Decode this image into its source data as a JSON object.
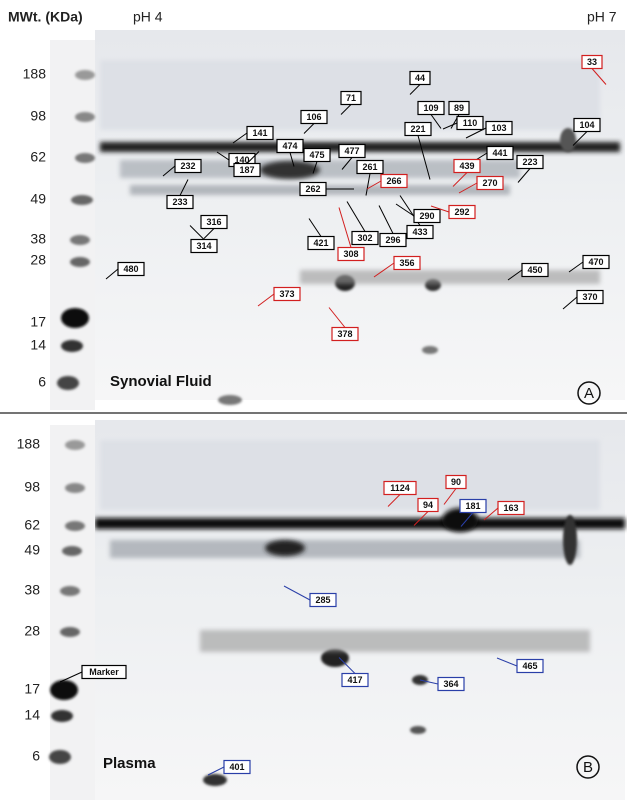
{
  "panels": [
    {
      "header": {
        "mw_label": "MWt. (KDa)",
        "ph_low": "pH 4",
        "ph_high": "pH 7"
      },
      "mw_markers": [
        "188",
        "98",
        "62",
        "49",
        "38",
        "28",
        "17",
        "14",
        "6"
      ],
      "sample": "Synovial Fluid",
      "letter": "A",
      "spots": [
        {
          "label": "44",
          "color": "#000000"
        },
        {
          "label": "71",
          "color": "#000000"
        },
        {
          "label": "106",
          "color": "#000000"
        },
        {
          "label": "141",
          "color": "#000000"
        },
        {
          "label": "140",
          "color": "#000000"
        },
        {
          "label": "187",
          "color": "#000000"
        },
        {
          "label": "474",
          "color": "#000000"
        },
        {
          "label": "475",
          "color": "#000000"
        },
        {
          "label": "477",
          "color": "#000000"
        },
        {
          "label": "261",
          "color": "#000000"
        },
        {
          "label": "262",
          "color": "#000000"
        },
        {
          "label": "109",
          "color": "#000000"
        },
        {
          "label": "89",
          "color": "#000000"
        },
        {
          "label": "110",
          "color": "#000000"
        },
        {
          "label": "103",
          "color": "#000000"
        },
        {
          "label": "221",
          "color": "#000000"
        },
        {
          "label": "441",
          "color": "#000000"
        },
        {
          "label": "223",
          "color": "#000000"
        },
        {
          "label": "104",
          "color": "#000000"
        },
        {
          "label": "232",
          "color": "#000000"
        },
        {
          "label": "233",
          "color": "#000000"
        },
        {
          "label": "316",
          "color": "#000000"
        },
        {
          "label": "314",
          "color": "#000000"
        },
        {
          "label": "421",
          "color": "#000000"
        },
        {
          "label": "302",
          "color": "#000000"
        },
        {
          "label": "296",
          "color": "#000000"
        },
        {
          "label": "433",
          "color": "#000000"
        },
        {
          "label": "290",
          "color": "#000000"
        },
        {
          "label": "480",
          "color": "#000000"
        },
        {
          "label": "450",
          "color": "#000000"
        },
        {
          "label": "470",
          "color": "#000000"
        },
        {
          "label": "370",
          "color": "#000000"
        },
        {
          "label": "33",
          "color": "#d21f1f"
        },
        {
          "label": "266",
          "color": "#d21f1f"
        },
        {
          "label": "439",
          "color": "#d21f1f"
        },
        {
          "label": "270",
          "color": "#d21f1f"
        },
        {
          "label": "292",
          "color": "#d21f1f"
        },
        {
          "label": "308",
          "color": "#d21f1f"
        },
        {
          "label": "356",
          "color": "#d21f1f"
        },
        {
          "label": "373",
          "color": "#d21f1f"
        },
        {
          "label": "378",
          "color": "#d21f1f"
        }
      ]
    },
    {
      "mw_markers": [
        "188",
        "98",
        "62",
        "49",
        "38",
        "28",
        "17",
        "14",
        "6"
      ],
      "sample": "Plasma",
      "letter": "B",
      "spots": [
        {
          "label": "1124",
          "color": "#d21f1f"
        },
        {
          "label": "90",
          "color": "#d21f1f"
        },
        {
          "label": "94",
          "color": "#d21f1f"
        },
        {
          "label": "163",
          "color": "#d21f1f"
        },
        {
          "label": "181",
          "color": "#2a3fa8"
        },
        {
          "label": "285",
          "color": "#2a3fa8"
        },
        {
          "label": "417",
          "color": "#2a3fa8"
        },
        {
          "label": "364",
          "color": "#2a3fa8"
        },
        {
          "label": "465",
          "color": "#2a3fa8"
        },
        {
          "label": "401",
          "color": "#2a3fa8"
        },
        {
          "label": "Marker",
          "color": "#000000"
        }
      ]
    }
  ]
}
